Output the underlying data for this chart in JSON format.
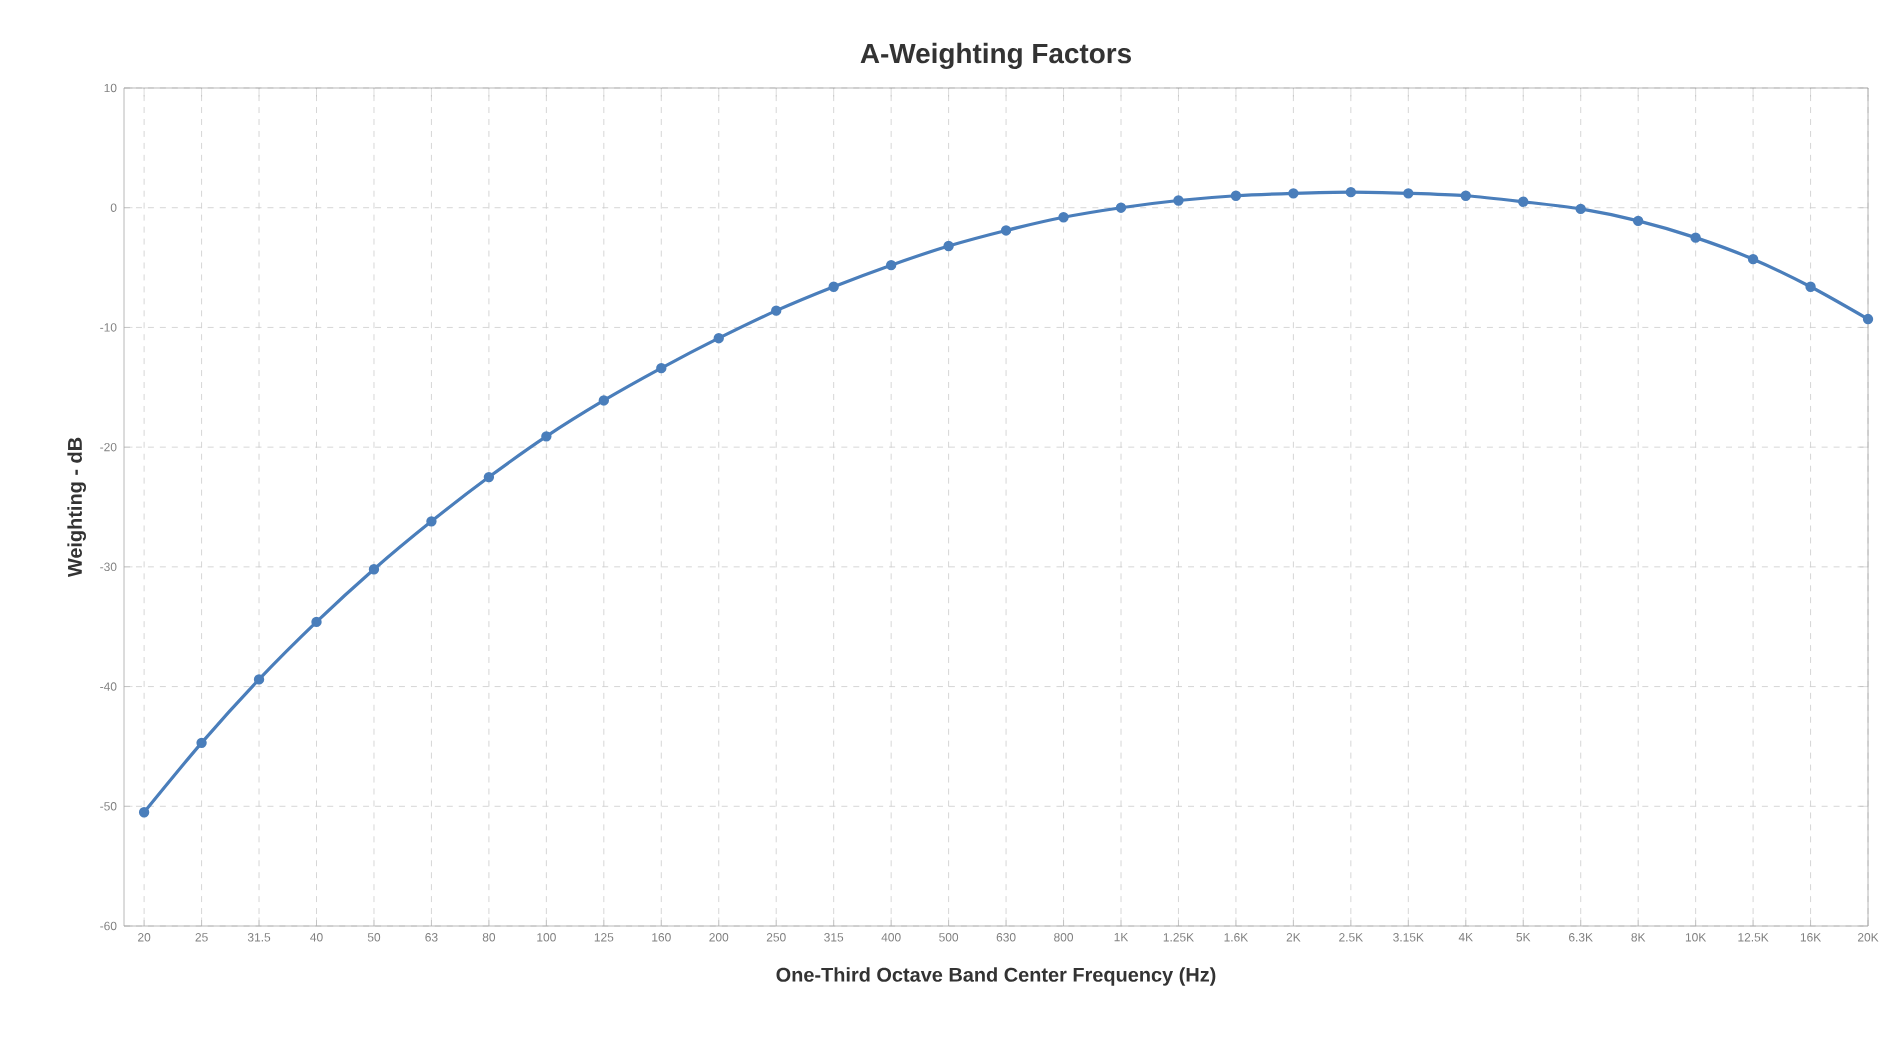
{
  "chart_data": {
    "type": "line",
    "title": "A-Weighting Factors",
    "xlabel": "One-Third Octave Band Center Frequency (Hz)",
    "ylabel": "Weighting - dB",
    "categories": [
      "20",
      "25",
      "31.5",
      "40",
      "50",
      "63",
      "80",
      "100",
      "125",
      "160",
      "200",
      "250",
      "315",
      "400",
      "500",
      "630",
      "800",
      "1K",
      "1.25K",
      "1.6K",
      "2K",
      "2.5K",
      "3.15K",
      "4K",
      "5K",
      "6.3K",
      "8K",
      "10K",
      "12.5K",
      "16K",
      "20K"
    ],
    "series": [
      {
        "color": "#4a7ebb",
        "values": [
          -50.5,
          -44.7,
          -39.4,
          -34.6,
          -30.2,
          -26.2,
          -22.5,
          -19.1,
          -16.1,
          -13.4,
          -10.9,
          -8.6,
          -6.6,
          -4.8,
          -3.2,
          -1.9,
          -0.8,
          0,
          0.6,
          1.0,
          1.2,
          1.3,
          1.2,
          1.0,
          0.5,
          -0.1,
          -1.1,
          -2.5,
          -4.3,
          -6.6,
          -9.3
        ]
      }
    ],
    "ylim": [
      -60,
      10
    ],
    "yticks": [
      -60,
      -50,
      -40,
      -30,
      -20,
      -10,
      0,
      10
    ],
    "grid": true,
    "marker": "circle",
    "line_style": "solid"
  }
}
